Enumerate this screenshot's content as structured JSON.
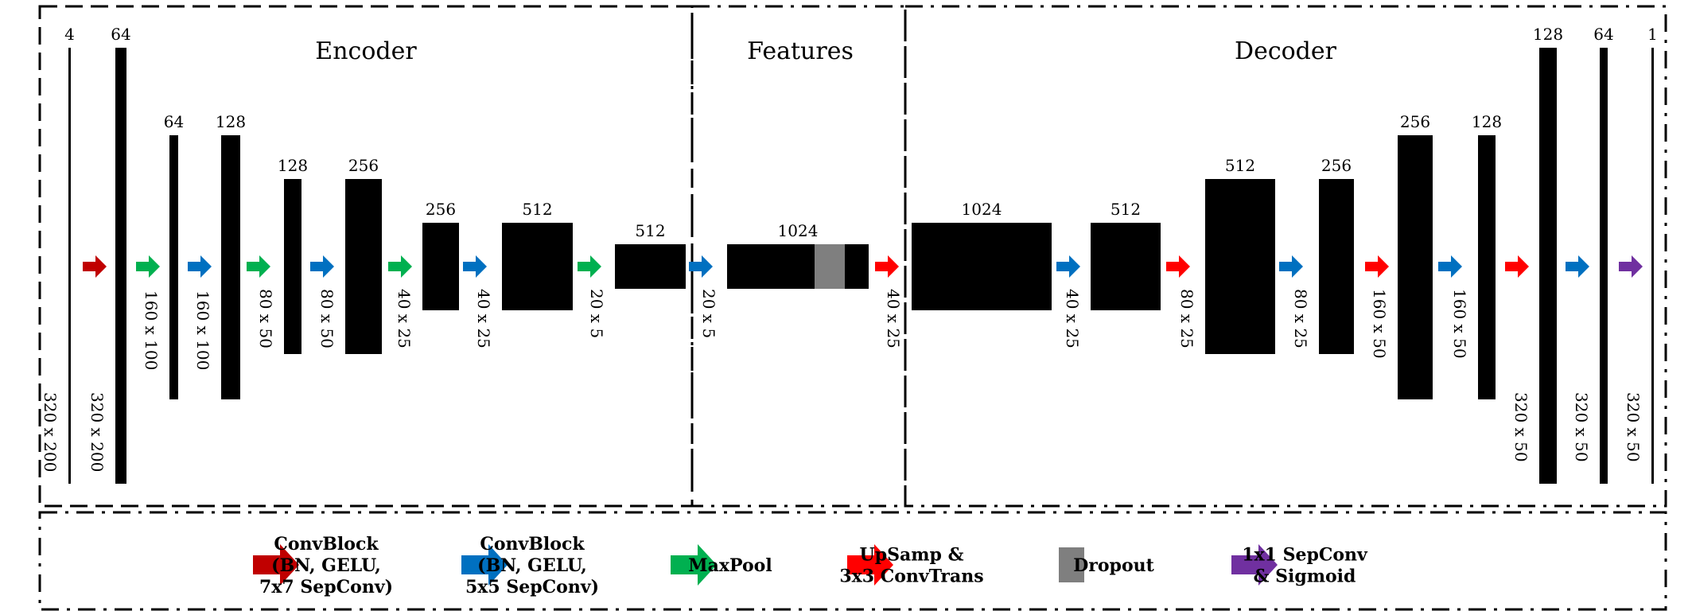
{
  "sections": {
    "encoder": "Encoder",
    "features": "Features",
    "decoder": "Decoder"
  },
  "colors": {
    "convblock7": "#c00000",
    "convblock5": "#0070c0",
    "maxpool": "#00b050",
    "upsamp": "#ff0000",
    "dropout": "#7f7f7f",
    "sepconv": "#7030a0"
  },
  "layers": [
    {
      "channels": "4",
      "dims": "320 x 200"
    },
    {
      "channels": "64",
      "dims": "320 x 200"
    },
    {
      "channels": "64",
      "dims": "160 x 100"
    },
    {
      "channels": "128",
      "dims": "160 x 100"
    },
    {
      "channels": "128",
      "dims": "80 x 50"
    },
    {
      "channels": "256",
      "dims": "80 x 50"
    },
    {
      "channels": "256",
      "dims": "40 x 25"
    },
    {
      "channels": "512",
      "dims": "40 x 25"
    },
    {
      "channels": "512",
      "dims": "20 x 5"
    },
    {
      "channels": "1024",
      "dims": "20 x 5"
    },
    {
      "channels": "1024",
      "dims": "40 x 25"
    },
    {
      "channels": "512",
      "dims": "40 x 25"
    },
    {
      "channels": "512",
      "dims": "80 x 25"
    },
    {
      "channels": "256",
      "dims": "80 x 25"
    },
    {
      "channels": "256",
      "dims": "160 x 50"
    },
    {
      "channels": "128",
      "dims": "160 x 50"
    },
    {
      "channels": "128",
      "dims": "320 x 50"
    },
    {
      "channels": "64",
      "dims": "320 x 50"
    },
    {
      "channels": "1",
      "dims": "320 x 50"
    }
  ],
  "arrows": [
    "convblock7",
    "maxpool",
    "convblock5",
    "maxpool",
    "convblock5",
    "maxpool",
    "convblock5",
    "maxpool",
    "convblock5",
    "upsamp",
    "convblock5",
    "upsamp",
    "convblock5",
    "upsamp",
    "convblock5",
    "upsamp",
    "convblock5",
    "sepconv"
  ],
  "legend": [
    {
      "type": "convblock7",
      "lines": [
        "ConvBlock",
        "(BN, GELU,",
        "7x7 SepConv)"
      ]
    },
    {
      "type": "convblock5",
      "lines": [
        "ConvBlock",
        "(BN, GELU,",
        "5x5 SepConv)"
      ]
    },
    {
      "type": "maxpool",
      "lines": [
        "MaxPool"
      ]
    },
    {
      "type": "upsamp",
      "lines": [
        "UpSamp &",
        "3x3 ConvTrans"
      ]
    },
    {
      "type": "dropout",
      "lines": [
        "Dropout"
      ]
    },
    {
      "type": "sepconv",
      "lines": [
        "1x1 SepConv",
        "& Sigmoid"
      ]
    }
  ]
}
